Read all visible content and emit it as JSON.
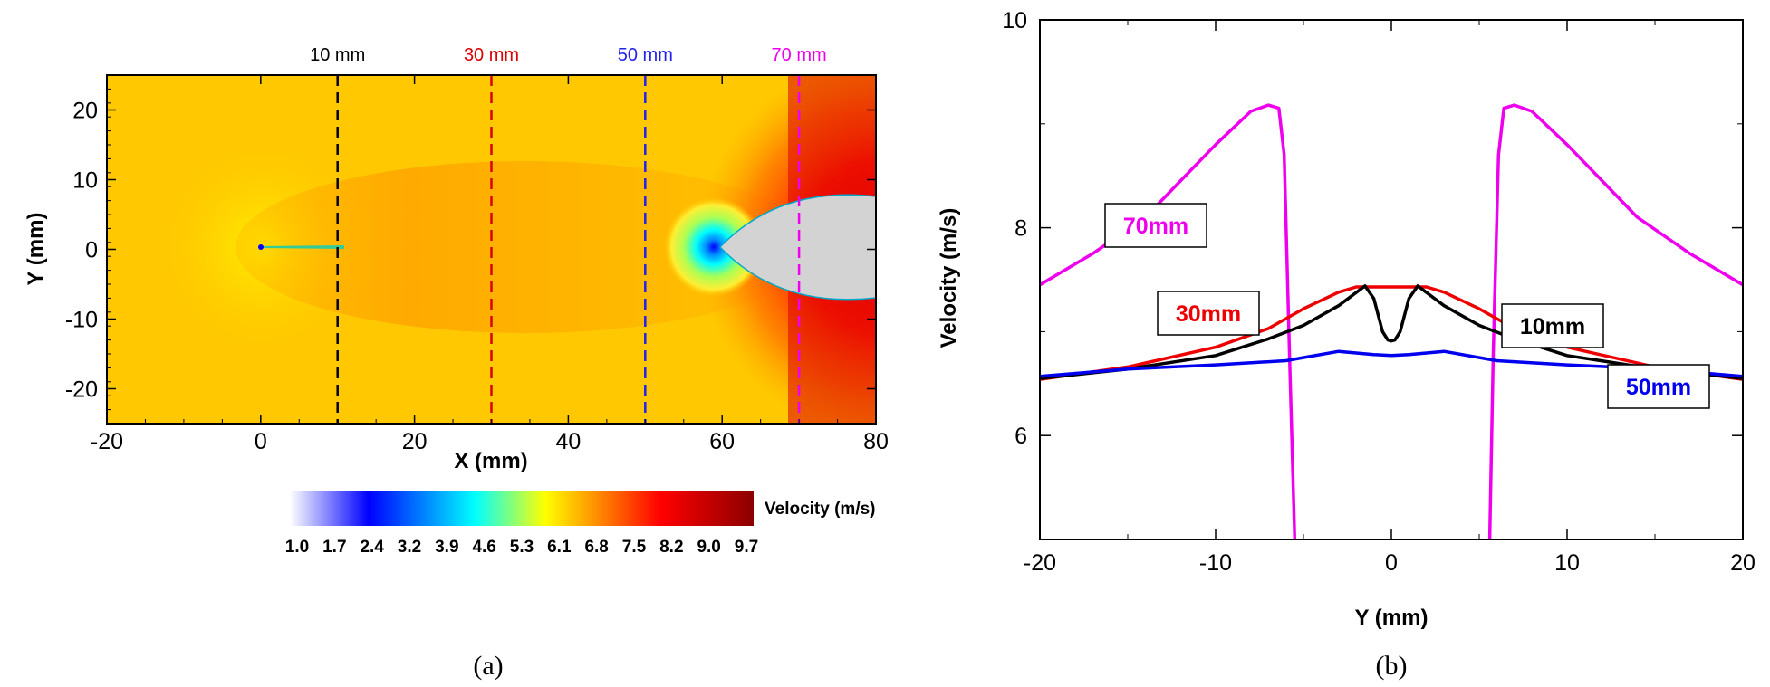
{
  "chart_data": [
    {
      "panel": "(a)",
      "type": "heatmap",
      "xlabel": "X (mm)",
      "ylabel": "Y (mm)",
      "xlim": [
        -20,
        80
      ],
      "ylim": [
        -25,
        25
      ],
      "xticks": [
        "-20",
        "0",
        "20",
        "40",
        "60",
        "80"
      ],
      "yticks": [
        "20",
        "10",
        "0",
        "-10",
        "-20"
      ],
      "colorbar": {
        "title": "Velocity (m/s)",
        "ticks": [
          "1.0",
          "1.7",
          "2.4",
          "3.2",
          "3.9",
          "4.6",
          "5.3",
          "6.1",
          "6.8",
          "7.5",
          "8.2",
          "9.0",
          "9.7"
        ],
        "colors": [
          "#ffffff",
          "#0000ff",
          "#00ffff",
          "#ffff00",
          "#ff0000",
          "#8b0000"
        ]
      },
      "cut_lines": [
        {
          "x": 10,
          "label": "10 mm",
          "color": "#000000"
        },
        {
          "x": 30,
          "label": "30 mm",
          "color": "#dd0000"
        },
        {
          "x": 50,
          "label": "50 mm",
          "color": "#2222ee"
        },
        {
          "x": 70,
          "label": "70 mm",
          "color": "#ee00ee"
        }
      ],
      "grid": false
    },
    {
      "panel": "(b)",
      "type": "line",
      "xlabel": "Y (mm)",
      "ylabel": "Velocity (m/s)",
      "xlim": [
        -20,
        20
      ],
      "ylim": [
        5,
        10
      ],
      "xticks": [
        "-20",
        "-10",
        "0",
        "10",
        "20"
      ],
      "yticks": [
        "10",
        "8",
        "6"
      ],
      "grid": false,
      "series": [
        {
          "name": "70mm",
          "color": "#ee00ee",
          "x": [
            -20,
            -17,
            -14,
            -12,
            -10,
            -8,
            -7,
            -6.4,
            -6.1,
            -5.8,
            -5.5
          ],
          "y": [
            7.45,
            7.75,
            8.1,
            8.45,
            8.8,
            9.12,
            9.18,
            9.15,
            8.7,
            6.8,
            5.0
          ]
        },
        {
          "name": "70mm",
          "color": "#ee00ee",
          "x": [
            5.6,
            5.8,
            6.1,
            6.4,
            7,
            8,
            10,
            12,
            14,
            17,
            20
          ],
          "y": [
            5.0,
            6.8,
            8.7,
            9.15,
            9.18,
            9.12,
            8.8,
            8.45,
            8.1,
            7.75,
            7.45
          ]
        },
        {
          "name": "30mm",
          "color": "#ee0000",
          "x": [
            -20,
            -15,
            -10,
            -7,
            -5,
            -3,
            -2,
            0,
            2,
            3,
            5,
            7,
            10,
            15,
            20
          ],
          "y": [
            6.54,
            6.66,
            6.85,
            7.03,
            7.22,
            7.38,
            7.43,
            7.43,
            7.43,
            7.38,
            7.22,
            7.03,
            6.85,
            6.66,
            6.54
          ]
        },
        {
          "name": "10mm",
          "color": "#000000",
          "x": [
            -20,
            -15,
            -10,
            -7,
            -5,
            -3,
            -1.5,
            -1,
            -0.5,
            -0.2,
            0,
            0.2,
            0.5,
            1,
            1.5,
            3,
            5,
            7,
            10,
            15,
            20
          ],
          "y": [
            6.55,
            6.64,
            6.77,
            6.93,
            7.06,
            7.25,
            7.44,
            7.32,
            7.0,
            6.92,
            6.91,
            6.92,
            7.0,
            7.32,
            7.44,
            7.25,
            7.06,
            6.93,
            6.77,
            6.64,
            6.55
          ]
        },
        {
          "name": "50mm",
          "color": "#0000ee",
          "x": [
            -20,
            -15,
            -10,
            -6,
            -3,
            -1,
            0,
            1,
            3,
            6,
            10,
            15,
            20
          ],
          "y": [
            6.57,
            6.64,
            6.68,
            6.72,
            6.81,
            6.78,
            6.77,
            6.78,
            6.81,
            6.72,
            6.68,
            6.64,
            6.57
          ]
        }
      ],
      "labels": [
        "70mm",
        "30mm",
        "10mm",
        "50mm"
      ]
    }
  ],
  "captions": [
    "(a)",
    "(b)"
  ]
}
